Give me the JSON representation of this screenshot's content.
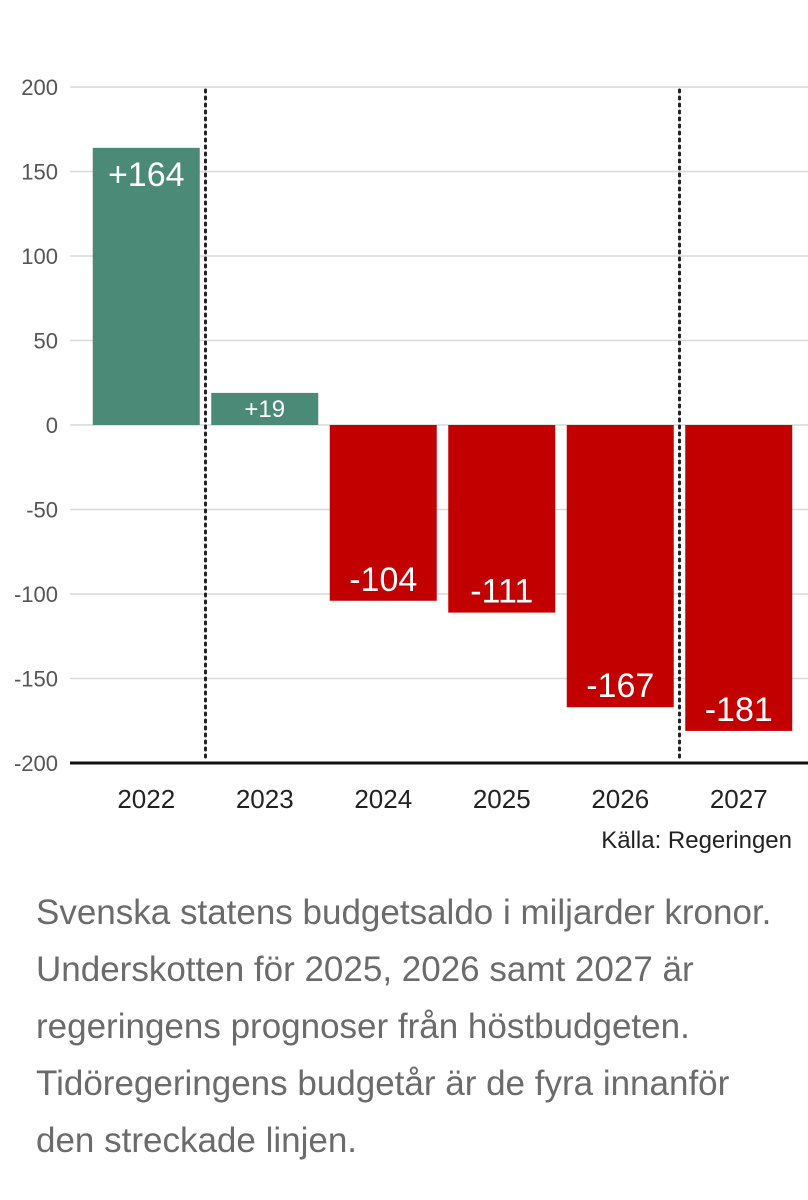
{
  "chart_data": {
    "type": "bar",
    "categories": [
      "2022",
      "2023",
      "2024",
      "2025",
      "2026",
      "2027"
    ],
    "values": [
      164,
      19,
      -104,
      -111,
      -167,
      -181
    ],
    "data_labels": [
      "+164",
      "+19",
      "-104",
      "-111",
      "-167",
      "-181"
    ],
    "ylim": [
      -200,
      200
    ],
    "yticks": [
      200,
      150,
      100,
      50,
      0,
      -50,
      -100,
      -150,
      -200
    ],
    "grid": "horizontal",
    "positive_color": "#4a8a76",
    "negative_color": "#c20000",
    "dotted_lines_between": [
      [
        "2022",
        "2023"
      ],
      [
        "2026",
        "2027"
      ]
    ],
    "source": "Källa: Regeringen"
  },
  "caption": "Svenska statens budgetsaldo i miljarder kronor. Underskotten för 2025, 2026 samt 2027 är regeringens prognoser från höstbudgeten. Tidöregeringens budgetår är de fyra innanför den streckade linjen."
}
